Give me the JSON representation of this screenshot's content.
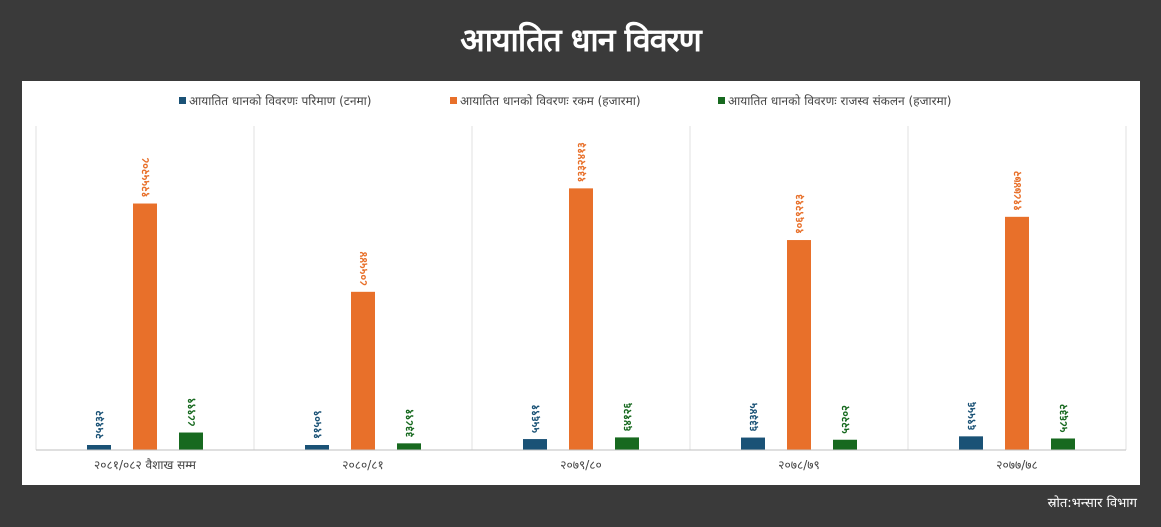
{
  "title": "आयातित धान विवरण",
  "source": "स्रोत:भन्सार विभाग",
  "colors": {
    "series1": "#1a5276",
    "series2": "#e8702a",
    "series3": "#17691f"
  },
  "chart_data": {
    "type": "bar",
    "categories": [
      "२०८१/०८२ वैशाख सम्म",
      "२०८०/८१",
      "२०७९/८०",
      "२०७८/७९",
      "२०७७/७८"
    ],
    "series": [
      {
        "name": "आयातित धानको विवरणः परिमाण (टनमा)",
        "values": [
          25132,
          11509,
          55691,
          63345,
          69556
        ],
        "labels": [
          "२५१३२",
          "११५०९",
          "५५६९१",
          "६३३४५",
          "६९५५६"
        ]
      },
      {
        "name": "आयातित धानको विवरणः रकम (हजारमा)",
        "values": [
          1255208,
          805544,
          1332413,
          1069213,
          1187472
        ],
        "labels": [
          "१२५५२०८",
          "८०५५४४",
          "१३३२४१३",
          "१०६९२१३",
          "११८७४७२"
        ]
      },
      {
        "name": "आयातित धानको विवरणः राजस्व संकलन (हजारमा)",
        "values": [
          88999,
          33891,
          64126,
          52202,
          58632
        ],
        "labels": [
          "८८९९९",
          "३३८९१",
          "६४१२६",
          "५२२०२",
          "५८६३२"
        ]
      }
    ],
    "ylim": [
      0,
      1650000
    ],
    "grid": false,
    "legend_position": "top"
  }
}
